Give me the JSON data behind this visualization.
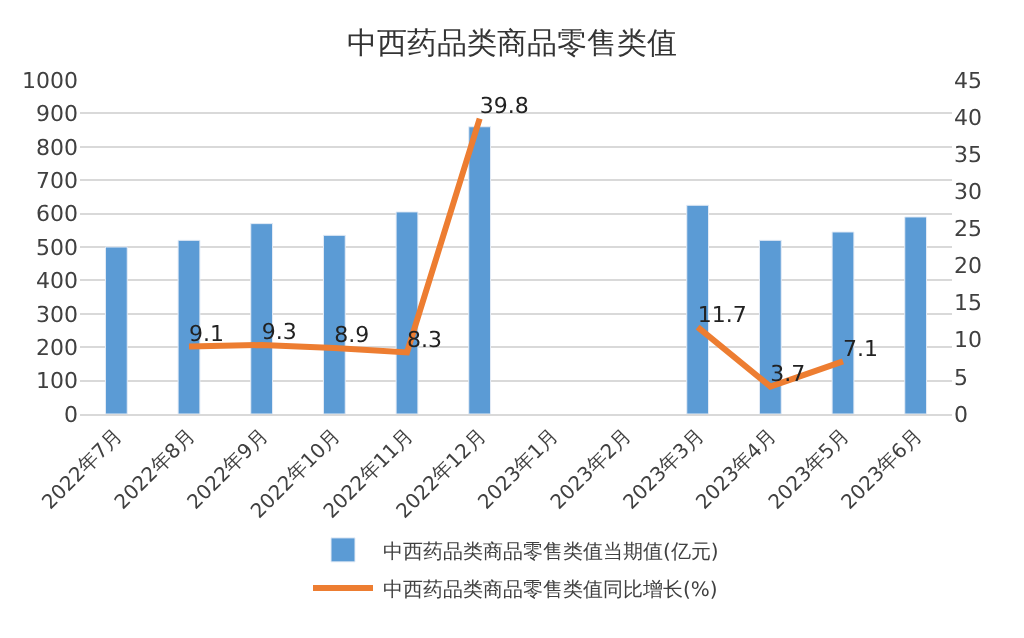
{
  "chart_data": {
    "type": "bar",
    "title": "中西药品类商品零售类值",
    "categories": [
      "2022年7月",
      "2022年8月",
      "2022年9月",
      "2022年10月",
      "2022年11月",
      "2022年12月",
      "2023年1月",
      "2023年2月",
      "2023年3月",
      "2023年4月",
      "2023年5月",
      "2023年6月"
    ],
    "series": [
      {
        "name": "中西药品类商品零售类值当期值(亿元)",
        "color": "#5b9bd5",
        "values": [
          500,
          520,
          570,
          535,
          605,
          860,
          null,
          null,
          625,
          520,
          545,
          590
        ]
      },
      {
        "name": "中西药品类商品零售类值同比增长(%)",
        "type": "line",
        "axis": "y2",
        "color": "#ed7d31",
        "values": [
          null,
          9.1,
          9.3,
          8.9,
          8.3,
          39.8,
          null,
          null,
          11.7,
          3.7,
          7.1,
          null
        ],
        "value_labels": [
          null,
          "9.1",
          "9.3",
          "8.9",
          "8.3",
          "39.8",
          null,
          null,
          "11.7",
          "3.7",
          "7.1",
          null
        ]
      }
    ],
    "ylim": [
      0,
      1000
    ],
    "yticks": [
      0,
      100,
      200,
      300,
      400,
      500,
      600,
      700,
      800,
      900,
      1000
    ],
    "y2lim": [
      0,
      45
    ],
    "y2ticks": [
      0,
      5,
      10,
      15,
      20,
      25,
      30,
      35,
      40,
      45
    ],
    "grid": "y",
    "legend": "bottom",
    "marker": "none"
  }
}
